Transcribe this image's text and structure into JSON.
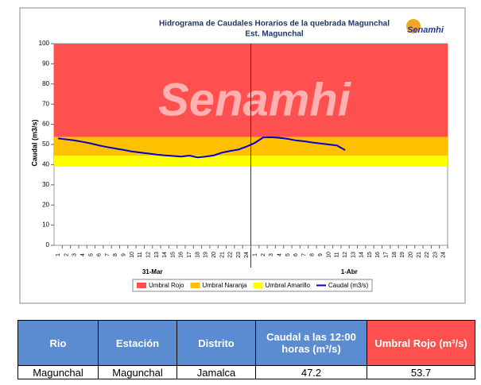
{
  "chart_data": {
    "type": "line",
    "title": "Hidrograma de Caudales Horarios de la quebrada Magunchal",
    "subtitle": "Est. Magunchal",
    "logo_text": "Senamhi",
    "ylabel": "Caudal (m3/s)",
    "ylim": [
      0,
      100
    ],
    "yticks": [
      0,
      10,
      20,
      30,
      40,
      50,
      60,
      70,
      80,
      90,
      100
    ],
    "categories": [
      "1",
      "2",
      "3",
      "4",
      "5",
      "6",
      "7",
      "8",
      "9",
      "10",
      "11",
      "12",
      "13",
      "14",
      "15",
      "16",
      "17",
      "18",
      "19",
      "20",
      "21",
      "22",
      "23",
      "24",
      "1",
      "2",
      "3",
      "4",
      "5",
      "6",
      "7",
      "8",
      "9",
      "10",
      "11",
      "12",
      "13",
      "14",
      "15",
      "16",
      "17",
      "18",
      "19",
      "20",
      "21",
      "22",
      "23",
      "24"
    ],
    "day_labels": [
      "31-Mar",
      "1-Abr"
    ],
    "bands": [
      {
        "name": "Umbral Rojo",
        "color": "#ff5050",
        "from": 53.7,
        "to": 100
      },
      {
        "name": "Umbral Naranja",
        "color": "#ffc000",
        "from": 44.5,
        "to": 53.7
      },
      {
        "name": "Umbral Amarillo",
        "color": "#ffff00",
        "from": 39,
        "to": 44.5
      }
    ],
    "series": [
      {
        "name": "Caudal (m3/s)",
        "color": "#0000cc",
        "values": [
          53,
          52.5,
          52,
          51.3,
          50.5,
          49.5,
          48.7,
          48,
          47.3,
          46.5,
          46,
          45.5,
          45,
          44.6,
          44.3,
          44,
          44.5,
          43.6,
          44,
          44.6,
          46,
          46.8,
          47.5,
          49,
          50.8,
          53.5,
          53.6,
          53.3,
          52.8,
          52,
          51.6,
          51,
          50.5,
          50,
          49.5,
          47.2,
          null,
          null,
          null,
          null,
          null,
          null,
          null,
          null,
          null,
          null,
          null,
          null
        ]
      }
    ]
  },
  "table": {
    "headers": [
      "Rio",
      "Estación",
      "Distrito",
      "Caudal a las 12:00 horas (m³/s)",
      "Umbral Rojo (m³/s)"
    ],
    "rows": [
      [
        "Magunchal",
        "Magunchal",
        "Jamalca",
        "47.2",
        "53.7"
      ]
    ]
  }
}
